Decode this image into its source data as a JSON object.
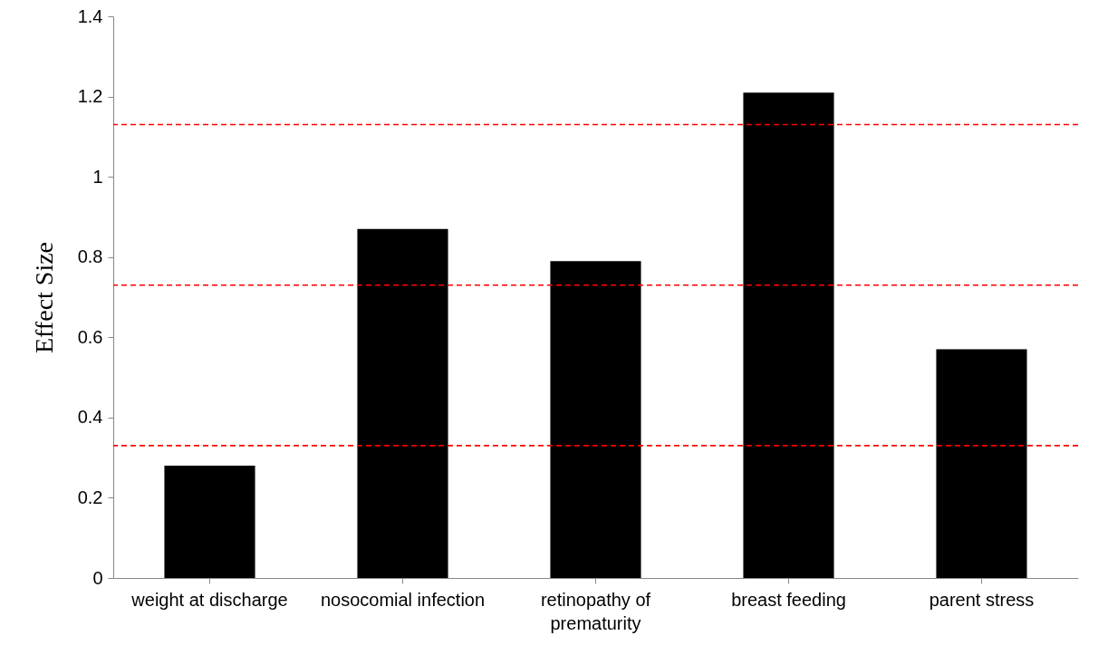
{
  "chart_data": {
    "type": "bar",
    "ylabel": "Effect Size",
    "categories": [
      "weight at discharge",
      "nosocomial infection",
      "retinopathy of prematurity",
      "breast feeding",
      "parent stress"
    ],
    "values": [
      0.28,
      0.87,
      0.79,
      1.21,
      0.57
    ],
    "color": "#000000",
    "ylim": [
      0,
      1.4
    ],
    "yticks": [
      0,
      0.2,
      0.4,
      0.6,
      0.8,
      1,
      1.2,
      1.4
    ],
    "grid": false,
    "ref_lines": [
      {
        "axis": "y",
        "value": 1.13,
        "color": "#ff0000",
        "line_style": "dashed"
      },
      {
        "axis": "y",
        "value": 0.73,
        "color": "#ff0000",
        "line_style": "dashed"
      },
      {
        "axis": "y",
        "value": 0.33,
        "color": "#ff0000",
        "line_style": "dashed"
      }
    ]
  }
}
